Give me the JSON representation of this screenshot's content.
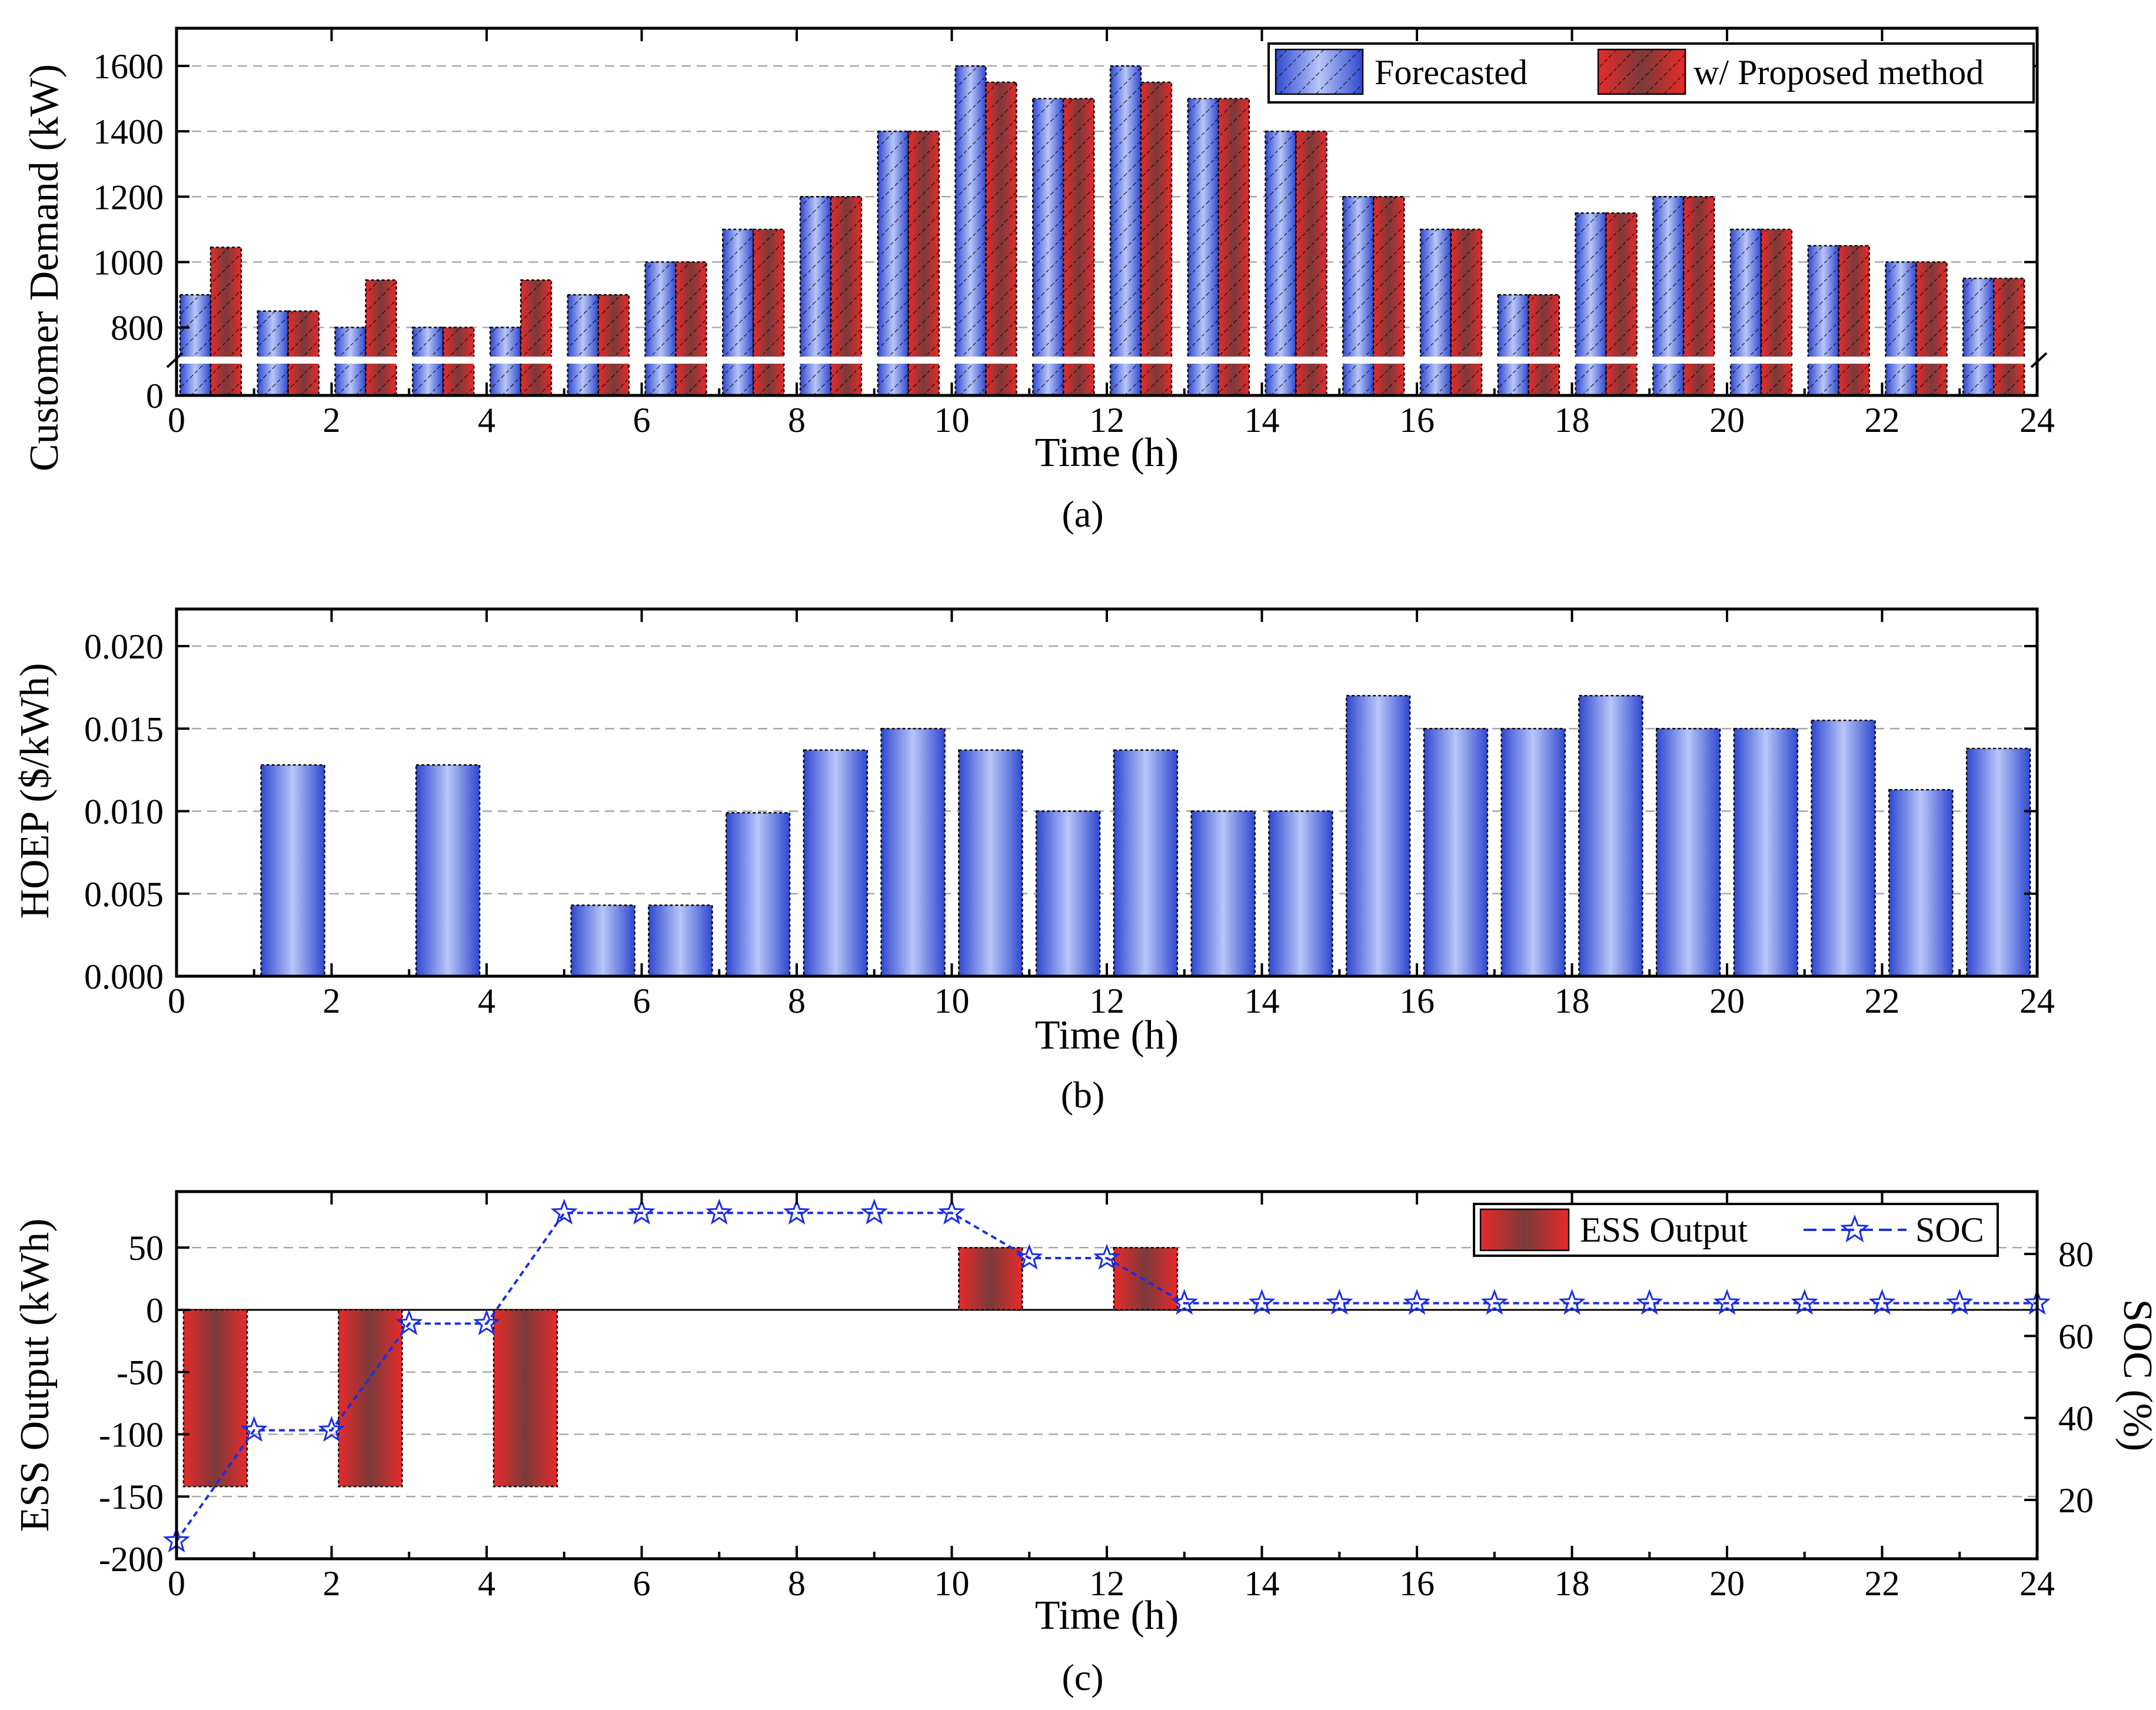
{
  "figure": {
    "panels": [
      {
        "id": "a",
        "caption": "(a)"
      },
      {
        "id": "b",
        "caption": "(b)"
      },
      {
        "id": "c",
        "caption": "(c)"
      }
    ]
  },
  "colors": {
    "blue_bar": "#5a72e0",
    "red_bar": "#e53a3a",
    "soc_line": "#1a2ee6",
    "grid": "#a6a6a6"
  },
  "chart_data": [
    {
      "panel": "a",
      "type": "bar",
      "xlabel": "Time (h)",
      "ylabel": "Customer Demand (kW)",
      "xlim": [
        0,
        24
      ],
      "xticks": [
        0,
        2,
        4,
        6,
        8,
        10,
        12,
        14,
        16,
        18,
        20,
        22,
        24
      ],
      "yticks": [
        0,
        800,
        1000,
        1200,
        1400,
        1600
      ],
      "ylim_upper_segment": [
        700,
        1650
      ],
      "axis_break": true,
      "grid": true,
      "legend_position": "top-right",
      "categories": [
        0,
        1,
        2,
        3,
        4,
        5,
        6,
        7,
        8,
        9,
        10,
        11,
        12,
        13,
        14,
        15,
        16,
        17,
        18,
        19,
        20,
        21,
        22,
        23
      ],
      "series": [
        {
          "name": "Forecasted",
          "values": [
            900,
            850,
            800,
            800,
            800,
            900,
            1000,
            1100,
            1200,
            1400,
            1600,
            1500,
            1600,
            1500,
            1400,
            1200,
            1100,
            900,
            1150,
            1200,
            1100,
            1050,
            1000,
            950
          ]
        },
        {
          "name": "w/ Proposed method",
          "values": [
            1045,
            850,
            945,
            800,
            945,
            900,
            1000,
            1100,
            1200,
            1400,
            1550,
            1500,
            1550,
            1500,
            1400,
            1200,
            1100,
            900,
            1150,
            1200,
            1100,
            1050,
            1000,
            950
          ]
        }
      ]
    },
    {
      "panel": "b",
      "type": "bar",
      "xlabel": "Time (h)",
      "ylabel": "HOEP ($/kWh)",
      "xlim": [
        0,
        24
      ],
      "ylim": [
        0,
        0.02
      ],
      "xticks": [
        0,
        2,
        4,
        6,
        8,
        10,
        12,
        14,
        16,
        18,
        20,
        22,
        24
      ],
      "yticks": [
        "0.000",
        "0.005",
        "0.010",
        "0.015",
        "0.020"
      ],
      "grid": true,
      "categories": [
        0,
        1,
        2,
        3,
        4,
        5,
        6,
        7,
        8,
        9,
        10,
        11,
        12,
        13,
        14,
        15,
        16,
        17,
        18,
        19,
        20,
        21,
        22,
        23
      ],
      "values": [
        0,
        0.0128,
        0,
        0.0128,
        0,
        0.0043,
        0.0043,
        0.0099,
        0.0137,
        0.015,
        0.0137,
        0.01,
        0.0137,
        0.01,
        0.01,
        0.017,
        0.015,
        0.015,
        0.017,
        0.015,
        0.015,
        0.0155,
        0.0113,
        0.0138
      ]
    },
    {
      "panel": "c",
      "type": "bar+line",
      "xlabel": "Time (h)",
      "ylabel": "ESS Output (kWh)",
      "y2label": "SOC (%)",
      "xlim": [
        0,
        24
      ],
      "ylim": [
        -200,
        95
      ],
      "y2lim": [
        5,
        95
      ],
      "xticks": [
        0,
        2,
        4,
        6,
        8,
        10,
        12,
        14,
        16,
        18,
        20,
        22,
        24
      ],
      "yticks": [
        -200,
        -150,
        -100,
        -50,
        0,
        50
      ],
      "y2ticks": [
        20,
        40,
        60,
        80
      ],
      "grid": true,
      "legend_position": "top-right",
      "series": [
        {
          "name": "ESS Output",
          "type": "bar",
          "categories": [
            0,
            1,
            2,
            3,
            4,
            5,
            6,
            7,
            8,
            9,
            10,
            11,
            12,
            13,
            14,
            15,
            16,
            17,
            18,
            19,
            20,
            21,
            22,
            23
          ],
          "values": [
            -142,
            0,
            -142,
            0,
            -142,
            0,
            0,
            0,
            0,
            0,
            50,
            0,
            50,
            0,
            0,
            0,
            0,
            0,
            0,
            0,
            0,
            0,
            0,
            0
          ]
        },
        {
          "name": "SOC",
          "type": "line",
          "axis": "right",
          "x": [
            0,
            1,
            2,
            3,
            4,
            5,
            6,
            7,
            8,
            9,
            10,
            11,
            12,
            13,
            14,
            15,
            16,
            17,
            18,
            19,
            20,
            21,
            22,
            23,
            24
          ],
          "values": [
            10,
            37,
            37,
            63,
            63,
            90,
            90,
            90,
            90,
            90,
            90,
            79,
            79,
            68,
            68,
            68,
            68,
            68,
            68,
            68,
            68,
            68,
            68,
            68,
            68
          ]
        }
      ]
    }
  ]
}
